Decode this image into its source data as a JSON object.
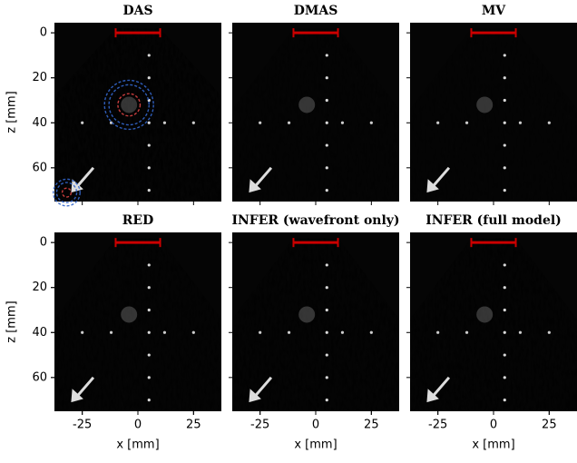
{
  "chart_data": [
    {
      "type": "image",
      "title": "DAS",
      "ylabel": "z [mm]",
      "xlim": [
        -37.5,
        37.5
      ],
      "ylim": [
        75,
        -4.5
      ],
      "yticks": [
        0,
        20,
        40,
        60
      ]
    },
    {
      "type": "image",
      "title": "DMAS",
      "xlim": [
        -37.5,
        37.5
      ],
      "ylim": [
        75,
        -4.5
      ]
    },
    {
      "type": "image",
      "title": "MV",
      "xlim": [
        -37.5,
        37.5
      ],
      "ylim": [
        75,
        -4.5
      ]
    },
    {
      "type": "image",
      "title": "RED",
      "ylabel": "z [mm]",
      "xlabel": "x [mm]",
      "xlim": [
        -37.5,
        37.5
      ],
      "ylim": [
        75,
        -4.5
      ],
      "yticks": [
        0,
        20,
        40,
        60
      ],
      "xticks": [
        -25,
        0,
        25
      ]
    },
    {
      "type": "image",
      "title": "INFER (wavefront only)",
      "xlabel": "x [mm]",
      "xlim": [
        -37.5,
        37.5
      ],
      "ylim": [
        75,
        -4.5
      ],
      "xticks": [
        -25,
        0,
        25
      ]
    },
    {
      "type": "image",
      "title": "INFER (full model)",
      "xlabel": "x [mm]",
      "xlim": [
        -37.5,
        37.5
      ],
      "ylim": [
        75,
        -4.5
      ],
      "xticks": [
        -25,
        0,
        25
      ]
    }
  ]
}
